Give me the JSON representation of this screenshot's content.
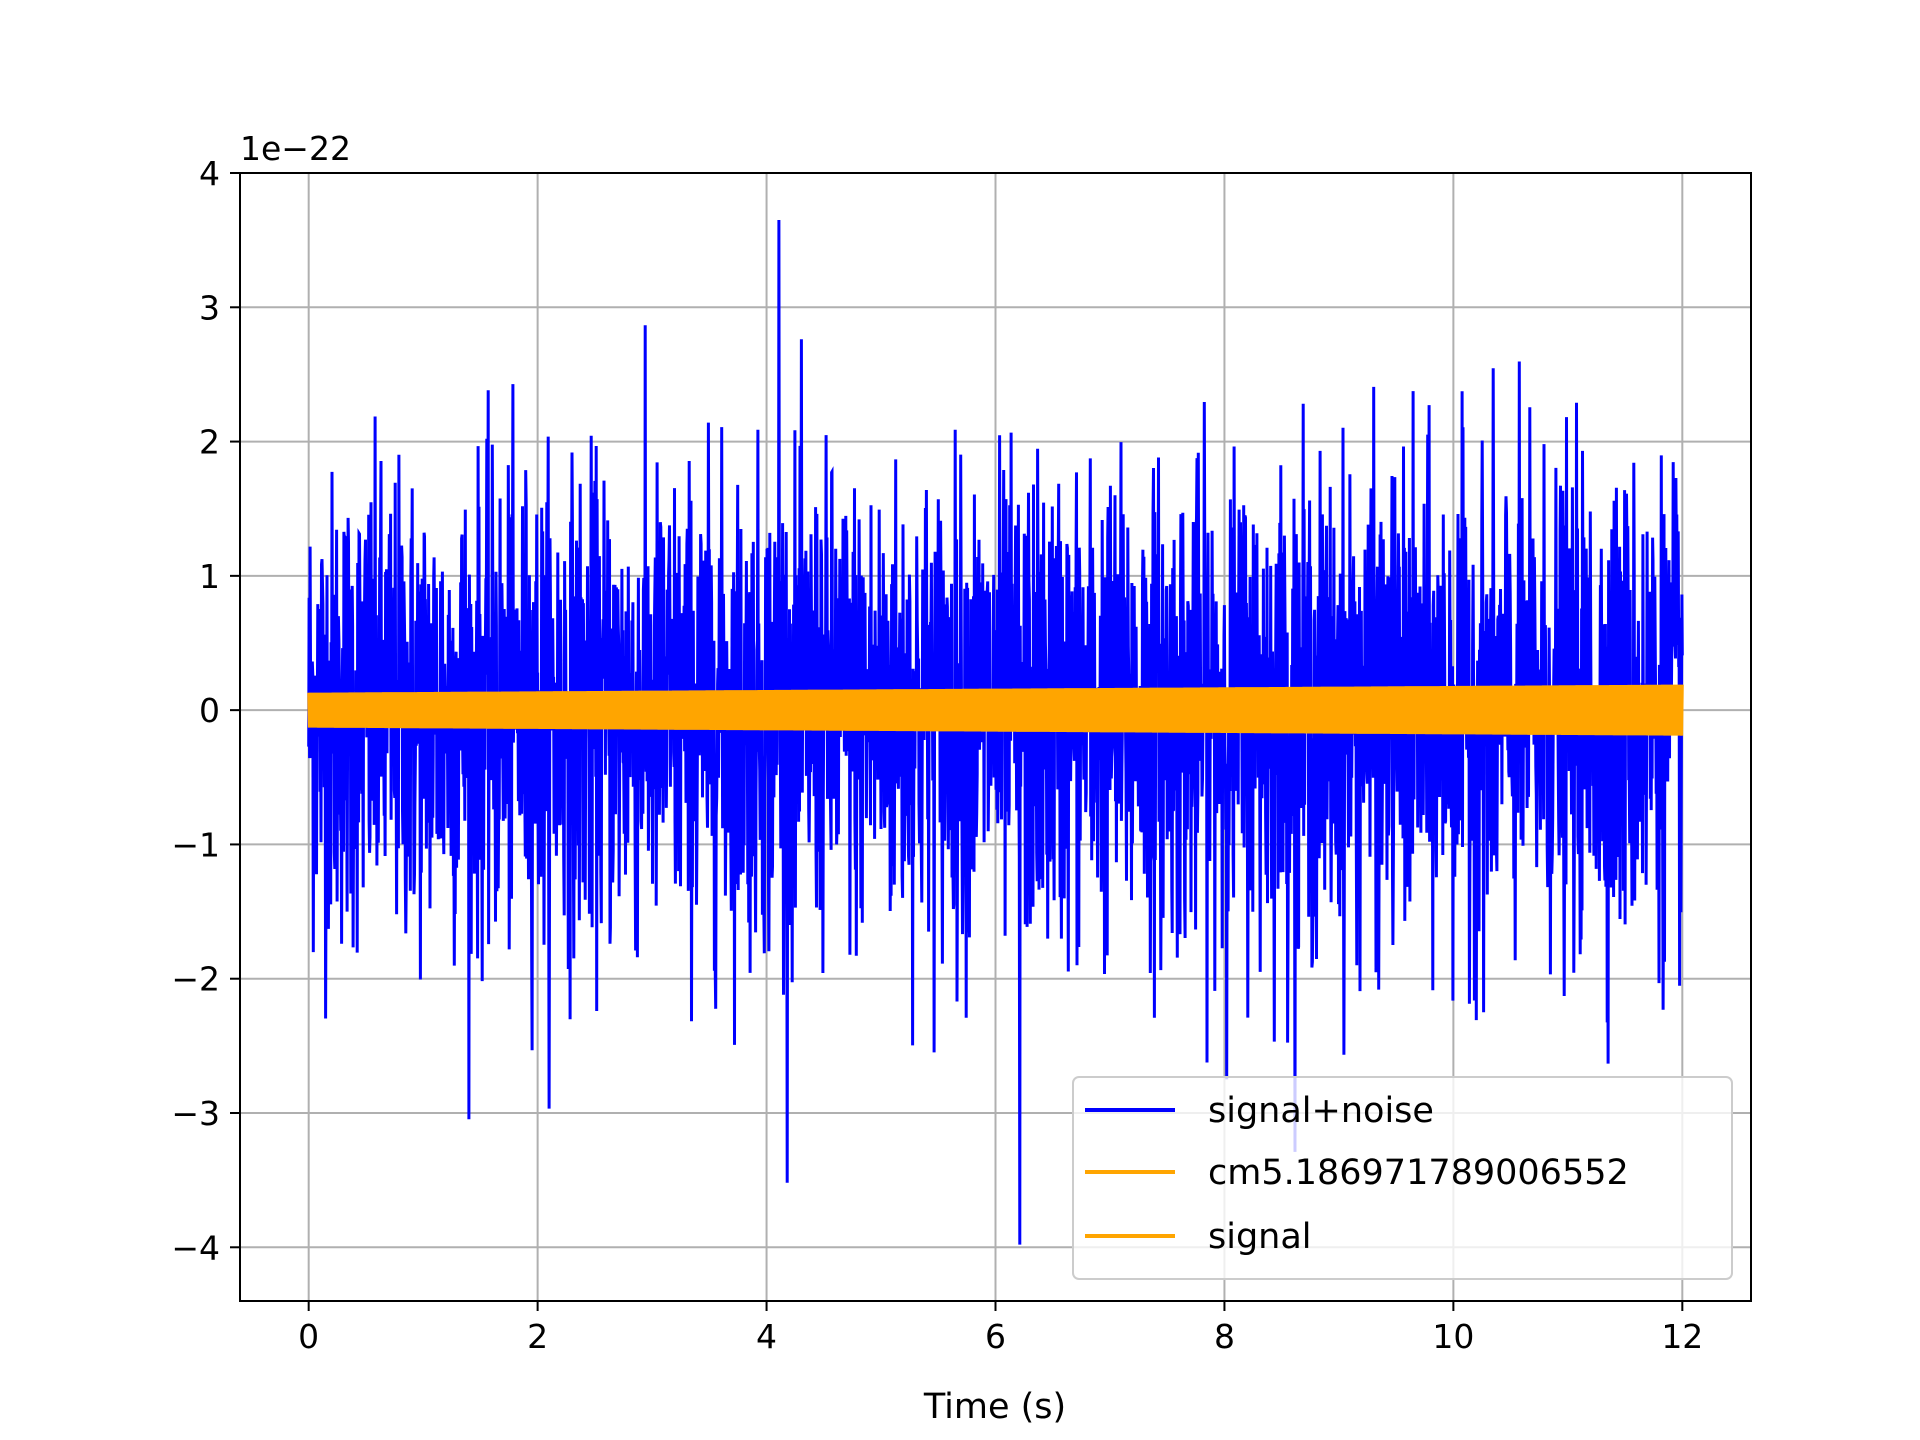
{
  "chart_data": {
    "type": "line",
    "title": "",
    "xlabel": "Time (s)",
    "ylabel": "",
    "y_offset_label": "1e−22",
    "xlim": [
      -0.6,
      12.6
    ],
    "ylim": [
      -4.4,
      4.0
    ],
    "grid": true,
    "legend_position": "lower right",
    "x_ticks": [
      0,
      2,
      4,
      6,
      8,
      10,
      12
    ],
    "x_tick_labels": [
      "0",
      "2",
      "4",
      "6",
      "8",
      "10",
      "12"
    ],
    "y_ticks": [
      -4,
      -3,
      -2,
      -1,
      0,
      1,
      2,
      3,
      4
    ],
    "y_tick_labels": [
      "−4",
      "−3",
      "−2",
      "−1",
      "0",
      "1",
      "2",
      "3",
      "4"
    ],
    "x_range": [
      0,
      12
    ],
    "series": [
      {
        "name": "signal+noise",
        "color": "#0000ff",
        "kind": "noise",
        "typical_amplitude": 1.75,
        "max": 3.65,
        "min": -3.98
      },
      {
        "name": "cm5.186971789006552",
        "color": "#ffa500",
        "kind": "oscillation",
        "amplitude_start": 0.13,
        "amplitude_end": 0.19
      },
      {
        "name": "signal",
        "color": "#ffa500",
        "kind": "oscillation",
        "amplitude_start": 0.13,
        "amplitude_end": 0.19
      }
    ]
  }
}
